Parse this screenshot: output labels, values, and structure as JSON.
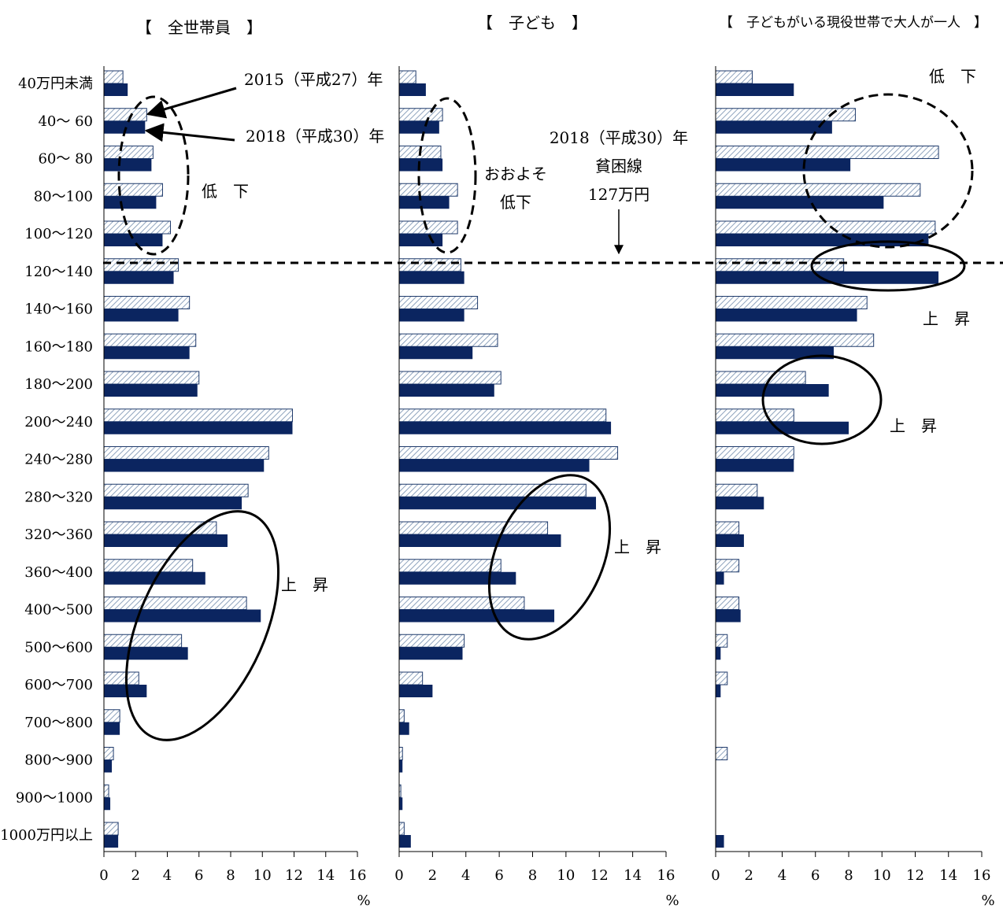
{
  "colors": {
    "series_2015_fill": "#ffffff",
    "series_2015_hatch": "#8ea3bd",
    "series_2015_stroke": "#1f3a6b",
    "series_2018_fill": "#0b2560",
    "axis": "#000000"
  },
  "legend_text": {
    "s2015": "2015（平成27）年",
    "s2018": "2018（平成30）年"
  },
  "poverty_line": {
    "l1": "2018（平成30）年",
    "l2": "貧困線",
    "l3": "127万円"
  },
  "annotations": {
    "p1_down": "低　下",
    "p1_up": "上　昇",
    "p2_down_1": "おおよそ",
    "p2_down_2": "低下",
    "p2_up": "上　昇",
    "p3_down": "低　下",
    "p3_up1": "上　昇",
    "p3_up2": "上　昇"
  },
  "chart_data": [
    {
      "type": "bar",
      "orientation": "horizontal",
      "title": "【　全世帯員　】",
      "xlabel": "%",
      "xlim": [
        0,
        16
      ],
      "ticks": [
        "0",
        "2",
        "4",
        "6",
        "8",
        "10",
        "12",
        "14",
        "16"
      ],
      "categories": [
        "40万円未満",
        "40～ 60",
        "60～ 80",
        "80～100",
        "100～120",
        "120～140",
        "140～160",
        "160～180",
        "180～200",
        "200～240",
        "240～280",
        "280～320",
        "320～360",
        "360～400",
        "400～500",
        "500～600",
        "600～700",
        "700～800",
        "800～900",
        "900～1000",
        "1000万円以上"
      ],
      "series": [
        {
          "name": "2015（平成27）年",
          "values": [
            1.2,
            2.7,
            3.1,
            3.7,
            4.2,
            4.7,
            5.4,
            5.8,
            6.0,
            11.9,
            10.4,
            9.1,
            7.1,
            5.6,
            9.0,
            4.9,
            2.2,
            1.0,
            0.6,
            0.3,
            0.9
          ]
        },
        {
          "name": "2018（平成30）年",
          "values": [
            1.5,
            2.6,
            3.0,
            3.3,
            3.7,
            4.4,
            4.7,
            5.4,
            5.9,
            11.9,
            10.1,
            8.7,
            7.8,
            6.4,
            9.9,
            5.3,
            2.7,
            1.0,
            0.5,
            0.4,
            0.9
          ]
        }
      ]
    },
    {
      "type": "bar",
      "orientation": "horizontal",
      "title": "【　子ども　】",
      "xlabel": "%",
      "xlim": [
        0,
        16
      ],
      "ticks": [
        "0",
        "2",
        "4",
        "6",
        "8",
        "10",
        "12",
        "14",
        "16"
      ],
      "categories": [
        "40万円未満",
        "40～ 60",
        "60～ 80",
        "80～100",
        "100～120",
        "120～140",
        "140～160",
        "160～180",
        "180～200",
        "200～240",
        "240～280",
        "280～320",
        "320～360",
        "360～400",
        "400～500",
        "500～600",
        "600～700",
        "700～800",
        "800～900",
        "900～1000",
        "1000万円以上"
      ],
      "series": [
        {
          "name": "2015（平成27）年",
          "values": [
            1.0,
            2.6,
            2.5,
            3.5,
            3.5,
            3.7,
            4.7,
            5.9,
            6.1,
            12.4,
            13.1,
            11.2,
            8.9,
            6.1,
            7.5,
            3.9,
            1.4,
            0.3,
            0.2,
            0.1,
            0.3
          ]
        },
        {
          "name": "2018（平成30）年",
          "values": [
            1.6,
            2.4,
            2.6,
            3.0,
            2.6,
            3.9,
            3.9,
            4.4,
            5.7,
            12.7,
            11.4,
            11.8,
            9.7,
            7.0,
            9.3,
            3.8,
            2.0,
            0.6,
            0.2,
            0.2,
            0.7
          ]
        }
      ]
    },
    {
      "type": "bar",
      "orientation": "horizontal",
      "title": "【　子どもがいる現役世帯で大人が一人　】",
      "xlabel": "%",
      "xlim": [
        0,
        16
      ],
      "ticks": [
        "0",
        "2",
        "4",
        "6",
        "8",
        "10",
        "12",
        "14",
        "16"
      ],
      "categories": [
        "40万円未満",
        "40～ 60",
        "60～ 80",
        "80～100",
        "100～120",
        "120～140",
        "140～160",
        "160～180",
        "180～200",
        "200～240",
        "240～280",
        "280～320",
        "320～360",
        "360～400",
        "400～500",
        "500～600",
        "600～700",
        "700～800",
        "800～900",
        "900～1000",
        "1000万円以上"
      ],
      "series": [
        {
          "name": "2015（平成27）年",
          "values": [
            2.2,
            8.4,
            13.4,
            12.3,
            13.2,
            7.7,
            9.1,
            9.5,
            5.4,
            4.7,
            4.7,
            2.5,
            1.4,
            1.4,
            1.4,
            0.7,
            0.7,
            0,
            0.7,
            0,
            0
          ]
        },
        {
          "name": "2018（平成30）年",
          "values": [
            4.7,
            7.0,
            8.1,
            10.1,
            12.8,
            13.4,
            8.5,
            7.1,
            6.8,
            8.0,
            4.7,
            2.9,
            1.7,
            0.5,
            1.5,
            0.3,
            0.3,
            0,
            0,
            0,
            0.5
          ]
        }
      ]
    }
  ]
}
